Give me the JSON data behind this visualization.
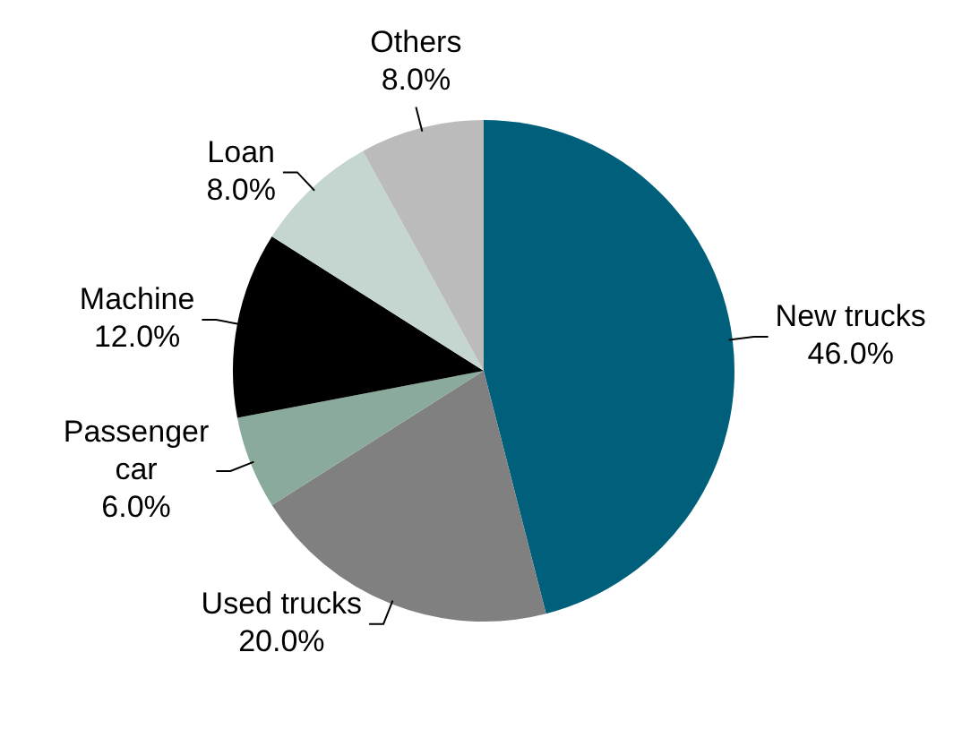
{
  "chart_data": {
    "type": "pie",
    "categories": [
      "New trucks",
      "Used trucks",
      "Passenger car",
      "Machine",
      "Loan",
      "Others"
    ],
    "values": [
      46,
      20,
      6,
      12,
      8,
      8
    ],
    "colors": [
      "#005f7a",
      "#808080",
      "#8aab9c",
      "#000000",
      "#c5d6d0",
      "#bbbbbb"
    ],
    "value_labels": [
      "46.0%",
      "20.0%",
      "6.0%",
      "12.0%",
      "8.0%",
      "8.0%"
    ],
    "legend": false
  }
}
